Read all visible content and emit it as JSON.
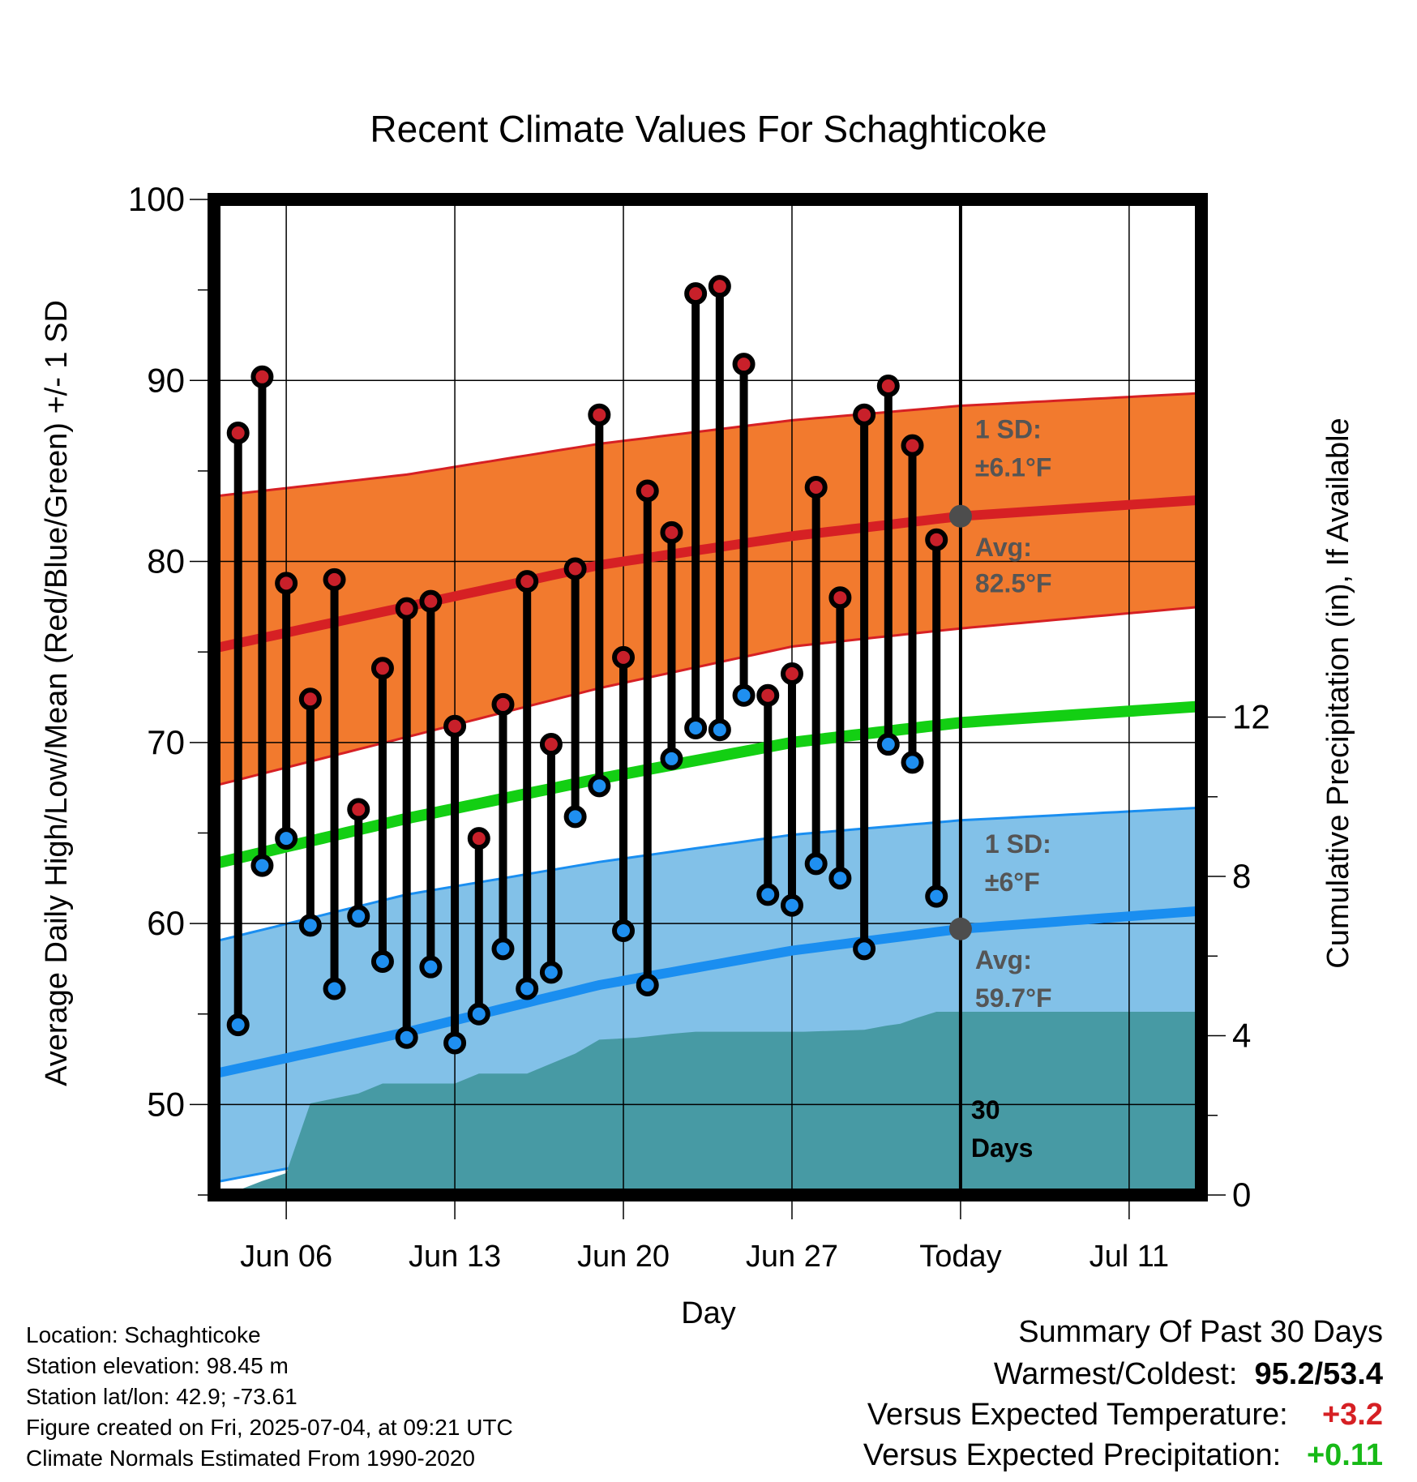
{
  "chart_data": {
    "type": "line",
    "title": "Recent Climate Values For Schaghticoke",
    "xlabel": "Day",
    "ylabel": "Average Daily High/Low/Mean (Red/Blue/Green) +/- 1 SD",
    "ylabel_right": "Cumulative Precipitation (in), If Available",
    "ylim": [
      45,
      100
    ],
    "ylim_right": [
      0,
      25
    ],
    "yticks": [
      "50",
      "60",
      "70",
      "80",
      "90",
      "100"
    ],
    "yticks_right": [
      "0",
      "4",
      "8",
      "12"
    ],
    "x_range_days_from_jun06": [
      -3,
      38
    ],
    "x_ticks": [
      {
        "day": 0,
        "label": "Jun 06"
      },
      {
        "day": 7,
        "label": "Jun 13"
      },
      {
        "day": 14,
        "label": "Jun 20"
      },
      {
        "day": 21,
        "label": "Jun 27"
      },
      {
        "day": 28,
        "label": "Today"
      },
      {
        "day": 35,
        "label": "Jul 11"
      }
    ],
    "grid": true,
    "days_label": "30\nDays",
    "observed": {
      "day": [
        -2,
        -1,
        0,
        1,
        2,
        3,
        4,
        5,
        6,
        7,
        8,
        9,
        10,
        11,
        12,
        13,
        14,
        15,
        16,
        17,
        18,
        19,
        20,
        21,
        22,
        23,
        24,
        25,
        26,
        27
      ],
      "high": [
        87.1,
        90.2,
        78.8,
        72.4,
        79.0,
        66.3,
        74.1,
        77.4,
        77.8,
        70.9,
        64.7,
        72.1,
        78.9,
        69.9,
        79.6,
        88.1,
        74.7,
        83.9,
        81.6,
        94.8,
        95.2,
        90.9,
        72.6,
        73.8,
        84.1,
        78.0,
        88.1,
        89.7,
        86.4,
        81.2
      ],
      "low": [
        54.4,
        63.2,
        64.7,
        59.9,
        56.4,
        60.4,
        57.9,
        53.7,
        57.6,
        53.4,
        55.0,
        58.6,
        56.4,
        57.3,
        65.9,
        67.6,
        59.6,
        56.6,
        69.1,
        70.8,
        70.7,
        72.6,
        61.6,
        61.0,
        63.3,
        62.5,
        58.6,
        69.9,
        68.9,
        61.5
      ]
    },
    "normal_high": {
      "day": [
        -3,
        5,
        13,
        21,
        28,
        38
      ],
      "mean": [
        75.2,
        77.5,
        79.8,
        81.4,
        82.5,
        83.4
      ],
      "upper": [
        83.6,
        84.8,
        86.5,
        87.8,
        88.6,
        89.3
      ],
      "lower": [
        67.6,
        70.3,
        73.0,
        75.3,
        76.3,
        77.5
      ]
    },
    "normal_mean": {
      "day": [
        -3,
        5,
        13,
        21,
        28,
        38
      ],
      "mean": [
        63.3,
        65.8,
        68.0,
        70.0,
        71.1,
        72.0
      ]
    },
    "normal_low": {
      "day": [
        -3,
        5,
        13,
        21,
        28,
        38
      ],
      "mean": [
        51.7,
        54.0,
        56.6,
        58.5,
        59.7,
        60.7
      ],
      "upper": [
        59.0,
        61.6,
        63.4,
        64.9,
        65.7,
        66.4
      ],
      "lower": [
        45.7,
        47.7,
        50.1,
        52.0,
        53.6,
        54.7
      ]
    },
    "precipitation_cumulative": {
      "day": [
        -2.5,
        -1,
        0,
        1,
        3,
        4,
        7,
        8,
        10,
        11,
        12,
        13,
        14.5,
        16,
        17,
        21.5,
        24,
        24.9,
        25.5,
        26.2,
        27,
        38
      ],
      "inches": [
        0,
        0.35,
        0.55,
        2.3,
        2.55,
        2.8,
        2.8,
        3.05,
        3.05,
        3.3,
        3.55,
        3.9,
        3.95,
        4.05,
        4.1,
        4.1,
        4.15,
        4.25,
        4.3,
        4.45,
        4.6,
        4.6
      ]
    },
    "annotations": {
      "high_sd_label": "1 SD:",
      "high_sd_value": "±6.1°F",
      "high_avg_label": "Avg:",
      "high_avg_value": "82.5°F",
      "high_avg_value_f": 82.5,
      "low_sd_label": "1 SD:",
      "low_sd_value": "±6°F",
      "low_avg_label": "Avg:",
      "low_avg_value": "59.7°F",
      "low_avg_value_f": 59.7
    },
    "colors": {
      "high_band": "#f27a2e",
      "high_line": "#d62024",
      "low_band": "#82c1e8",
      "low_line": "#1a8ef0",
      "mean_line": "#13cf13",
      "precip": "#479aa4",
      "high_dot": "#c8202a",
      "low_dot": "#1f8ff0",
      "avg_marker": "#4d4d4d",
      "annotation_text": "#555555",
      "warm": "#d62024",
      "wet": "#17b917"
    }
  },
  "info": {
    "location": "Location: Schaghticoke",
    "elevation": "Station elevation: 98.45 m",
    "latlon": "Station lat/lon: 42.9; -73.61",
    "created": "Figure created on Fri, 2025-07-04, at 09:21 UTC",
    "normals": "Climate Normals Estimated From 1990-2020"
  },
  "summary": {
    "title": "Summary Of Past 30 Days",
    "warmest_label": "Warmest/Coldest:",
    "warmest_value": "95.2/53.4",
    "temp_label": "Versus Expected Temperature:",
    "temp_value": "+3.2",
    "precip_label": "Versus Expected Precipitation:",
    "precip_value": "+0.11"
  }
}
